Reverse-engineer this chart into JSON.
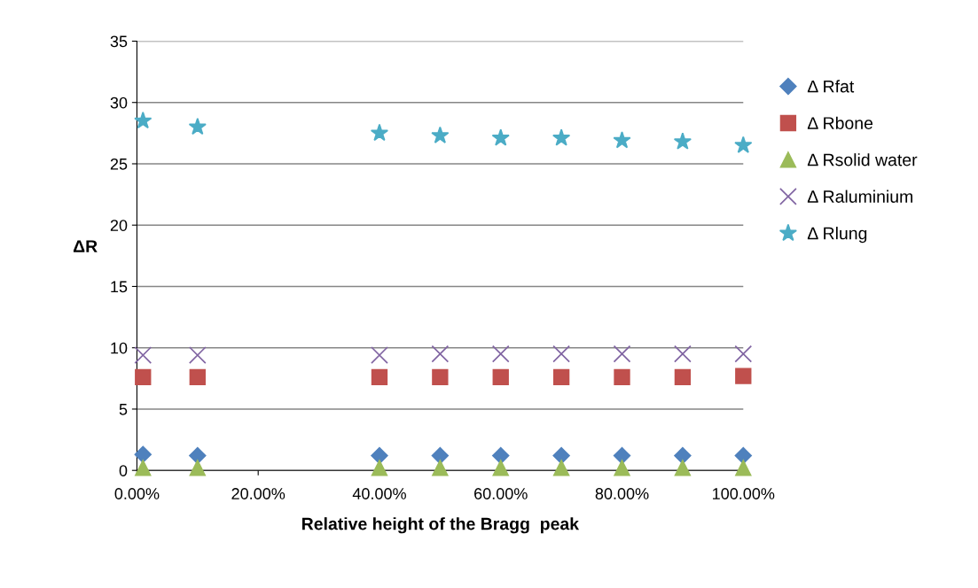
{
  "chart_data": {
    "type": "scatter",
    "xlabel": "Relative height of the Bragg  peak",
    "ylabel": "ΔR",
    "x": [
      0.01,
      0.1,
      0.4,
      0.5,
      0.6,
      0.7,
      0.8,
      0.9,
      1.0
    ],
    "series": [
      {
        "name": "Δ Rfat",
        "color": "#4f81bd",
        "marker": "diamond",
        "values": [
          1.3,
          1.2,
          1.2,
          1.2,
          1.2,
          1.2,
          1.2,
          1.2,
          1.2
        ]
      },
      {
        "name": "Δ Rbone",
        "color": "#c0504d",
        "marker": "square",
        "values": [
          7.6,
          7.6,
          7.6,
          7.6,
          7.6,
          7.6,
          7.6,
          7.6,
          7.7
        ]
      },
      {
        "name": "Δ Rsolid water",
        "color": "#9bbb59",
        "marker": "triangle",
        "values": [
          0.2,
          0.2,
          0.2,
          0.2,
          0.2,
          0.2,
          0.2,
          0.2,
          0.2
        ]
      },
      {
        "name": "Δ Raluminium",
        "color": "#8064a2",
        "marker": "cross",
        "values": [
          9.4,
          9.4,
          9.4,
          9.5,
          9.5,
          9.5,
          9.5,
          9.5,
          9.5
        ]
      },
      {
        "name": "Δ Rlung",
        "color": "#4bacc6",
        "marker": "star",
        "values": [
          28.5,
          28.0,
          27.5,
          27.3,
          27.1,
          27.1,
          26.9,
          26.8,
          26.5
        ]
      }
    ],
    "xlim": [
      0,
      1
    ],
    "xticks": [
      {
        "value": 0,
        "label": "0.00%"
      },
      {
        "value": 0.2,
        "label": "20.00%"
      },
      {
        "value": 0.4,
        "label": "40.00%"
      },
      {
        "value": 0.6,
        "label": "60.00%"
      },
      {
        "value": 0.8,
        "label": "80.00%"
      },
      {
        "value": 1.0,
        "label": "100.00%"
      }
    ],
    "ylim": [
      0,
      35
    ],
    "yticks": [
      0,
      5,
      10,
      15,
      20,
      25,
      30,
      35
    ],
    "grid": "y",
    "legend": "right"
  }
}
